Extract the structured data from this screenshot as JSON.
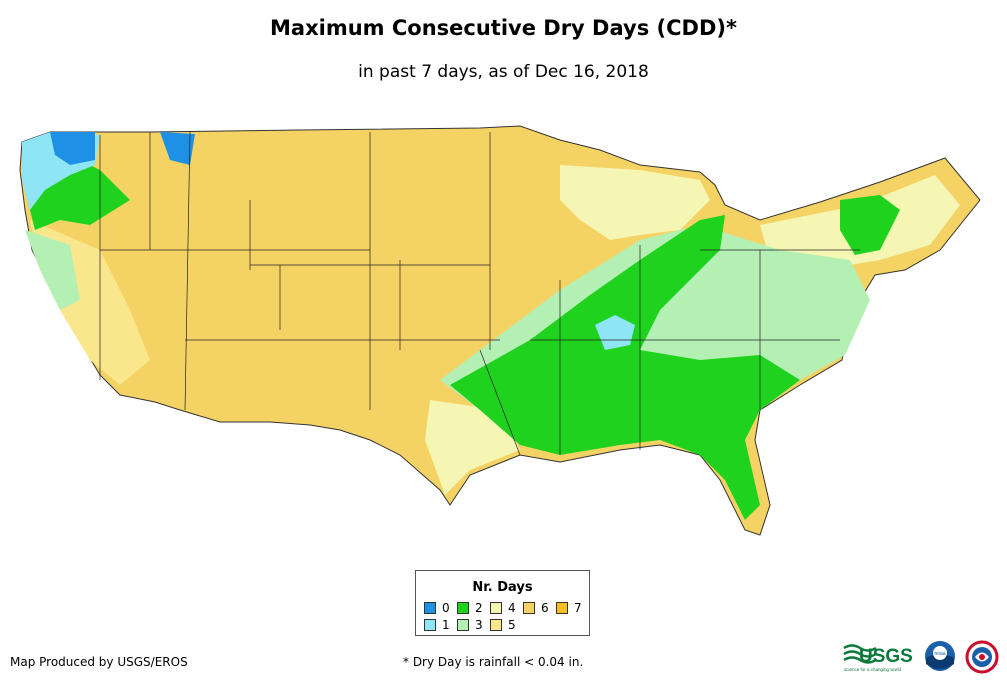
{
  "title": "Maximum Consecutive Dry Days (CDD)*",
  "subtitle": "in past 7 days, as of Dec 16, 2018",
  "legend": {
    "title": "Nr. Days",
    "items": [
      {
        "label": "0",
        "color": "#1e90e6"
      },
      {
        "label": "1",
        "color": "#8ee5f5"
      },
      {
        "label": "2",
        "color": "#1ed21e"
      },
      {
        "label": "3",
        "color": "#b4f0b4"
      },
      {
        "label": "4",
        "color": "#f5f5b4"
      },
      {
        "label": "5",
        "color": "#fae68c"
      },
      {
        "label": "6",
        "color": "#f5d264"
      },
      {
        "label": "7",
        "color": "#f5be1e"
      }
    ]
  },
  "credit": "Map Produced by USGS/EROS",
  "footnote": "* Dry Day is rainfall < 0.04 in.",
  "logos": {
    "usgs": "USGS",
    "usgs_tagline": "science for a changing world",
    "noaa": "noaa"
  }
}
